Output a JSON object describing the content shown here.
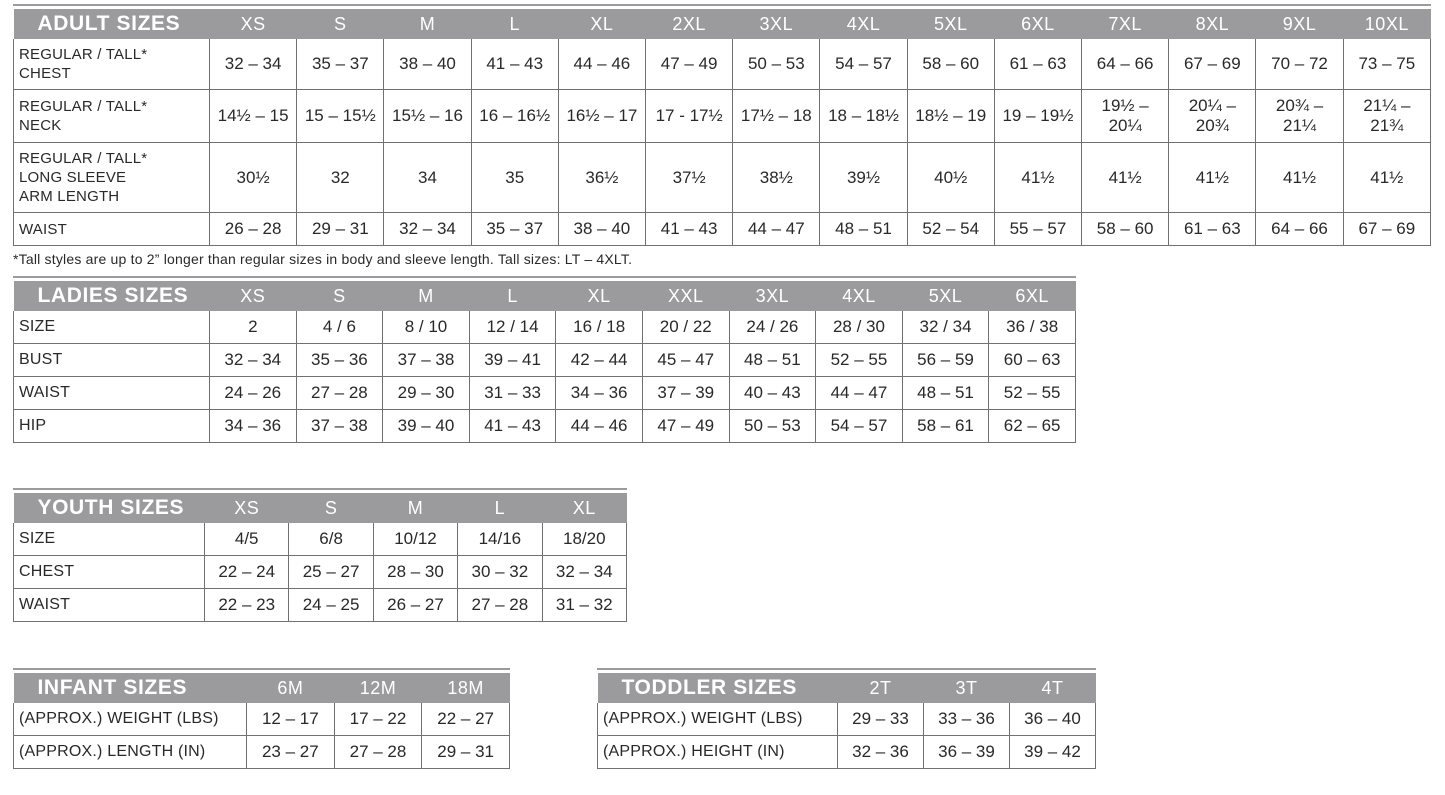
{
  "colors": {
    "header_bg": "#9b9a9c",
    "header_text": "#ffffff",
    "cell_border": "#717174",
    "text": "#29282a",
    "page_bg": "#ffffff"
  },
  "footnote": "*Tall styles are up to 2” longer than regular sizes in body and sleeve length. Tall sizes: LT – 4XLT.",
  "tables": {
    "adult": {
      "name": "adult-sizes",
      "title": "ADULT SIZES",
      "columns": [
        "XS",
        "S",
        "M",
        "L",
        "XL",
        "2XL",
        "3XL",
        "4XL",
        "5XL",
        "6XL",
        "7XL",
        "8XL",
        "9XL",
        "10XL"
      ],
      "rows": [
        {
          "label": "REGULAR / TALL*\nCHEST",
          "values": [
            "32 – 34",
            "35 – 37",
            "38 – 40",
            "41 – 43",
            "44 – 46",
            "47 – 49",
            "50 – 53",
            "54 – 57",
            "58 – 60",
            "61 – 63",
            "64 – 66",
            "67 – 69",
            "70 – 72",
            "73 – 75"
          ]
        },
        {
          "label": "REGULAR / TALL*\nNECK",
          "values": [
            "14½ – 15",
            "15 – 15½",
            "15½ – 16",
            "16 – 16½",
            "16½ – 17",
            "17 - 17½",
            "17½ – 18",
            "18 – 18½",
            "18½ – 19",
            "19 – 19½",
            "19½ –\n20¼",
            "20¼ –\n20¾",
            "20¾ –\n21¼",
            "21¼ –\n21¾"
          ]
        },
        {
          "label": "REGULAR / TALL*\nLONG SLEEVE\nARM LENGTH",
          "values": [
            "30½",
            "32",
            "34",
            "35",
            "36½",
            "37½",
            "38½",
            "39½",
            "40½",
            "41½",
            "41½",
            "41½",
            "41½",
            "41½"
          ]
        },
        {
          "label": "WAIST",
          "values": [
            "26 – 28",
            "29 – 31",
            "32 – 34",
            "35 – 37",
            "38 – 40",
            "41 – 43",
            "44 – 47",
            "48 – 51",
            "52 – 54",
            "55 – 57",
            "58 – 60",
            "61 – 63",
            "64 – 66",
            "67 – 69"
          ]
        }
      ]
    },
    "ladies": {
      "name": "ladies-sizes",
      "title": "LADIES SIZES",
      "columns": [
        "XS",
        "S",
        "M",
        "L",
        "XL",
        "XXL",
        "3XL",
        "4XL",
        "5XL",
        "6XL"
      ],
      "rows": [
        {
          "label": "SIZE",
          "values": [
            "2",
            "4 / 6",
            "8 / 10",
            "12 / 14",
            "16 / 18",
            "20 / 22",
            "24 / 26",
            "28 / 30",
            "32 / 34",
            "36 / 38"
          ]
        },
        {
          "label": "BUST",
          "values": [
            "32 – 34",
            "35 – 36",
            "37 – 38",
            "39 – 41",
            "42 – 44",
            "45 – 47",
            "48 – 51",
            "52 – 55",
            "56 – 59",
            "60 – 63"
          ]
        },
        {
          "label": "WAIST",
          "values": [
            "24 – 26",
            "27 – 28",
            "29 – 30",
            "31 – 33",
            "34 – 36",
            "37 – 39",
            "40 – 43",
            "44 – 47",
            "48 – 51",
            "52 – 55"
          ]
        },
        {
          "label": "HIP",
          "values": [
            "34 – 36",
            "37 – 38",
            "39 – 40",
            "41 – 43",
            "44 – 46",
            "47 – 49",
            "50 – 53",
            "54 – 57",
            "58 – 61",
            "62 – 65"
          ]
        }
      ]
    },
    "youth": {
      "name": "youth-sizes",
      "title": "YOUTH SIZES",
      "columns": [
        "XS",
        "S",
        "M",
        "L",
        "XL"
      ],
      "rows": [
        {
          "label": "SIZE",
          "values": [
            "4/5",
            "6/8",
            "10/12",
            "14/16",
            "18/20"
          ]
        },
        {
          "label": "CHEST",
          "values": [
            "22 – 24",
            "25 – 27",
            "28 – 30",
            "30 – 32",
            "32 – 34"
          ]
        },
        {
          "label": "WAIST",
          "values": [
            "22 – 23",
            "24 – 25",
            "26 – 27",
            "27 – 28",
            "31 – 32"
          ]
        }
      ]
    },
    "infant": {
      "name": "infant-sizes",
      "title": "INFANT SIZES",
      "columns": [
        "6M",
        "12M",
        "18M"
      ],
      "rows": [
        {
          "label": "(APPROX.) WEIGHT (LBS)",
          "values": [
            "12 – 17",
            "17 – 22",
            "22 – 27"
          ]
        },
        {
          "label": "(APPROX.) LENGTH (IN)",
          "values": [
            "23 – 27",
            "27 – 28",
            "29 – 31"
          ]
        }
      ]
    },
    "toddler": {
      "name": "toddler-sizes",
      "title": "TODDLER SIZES",
      "columns": [
        "2T",
        "3T",
        "4T"
      ],
      "rows": [
        {
          "label": "(APPROX.) WEIGHT (LBS)",
          "values": [
            "29 – 33",
            "33 – 36",
            "36 – 40"
          ]
        },
        {
          "label": "(APPROX.) HEIGHT (IN)",
          "values": [
            "32 – 36",
            "36 – 39",
            "39 – 42"
          ]
        }
      ]
    }
  }
}
